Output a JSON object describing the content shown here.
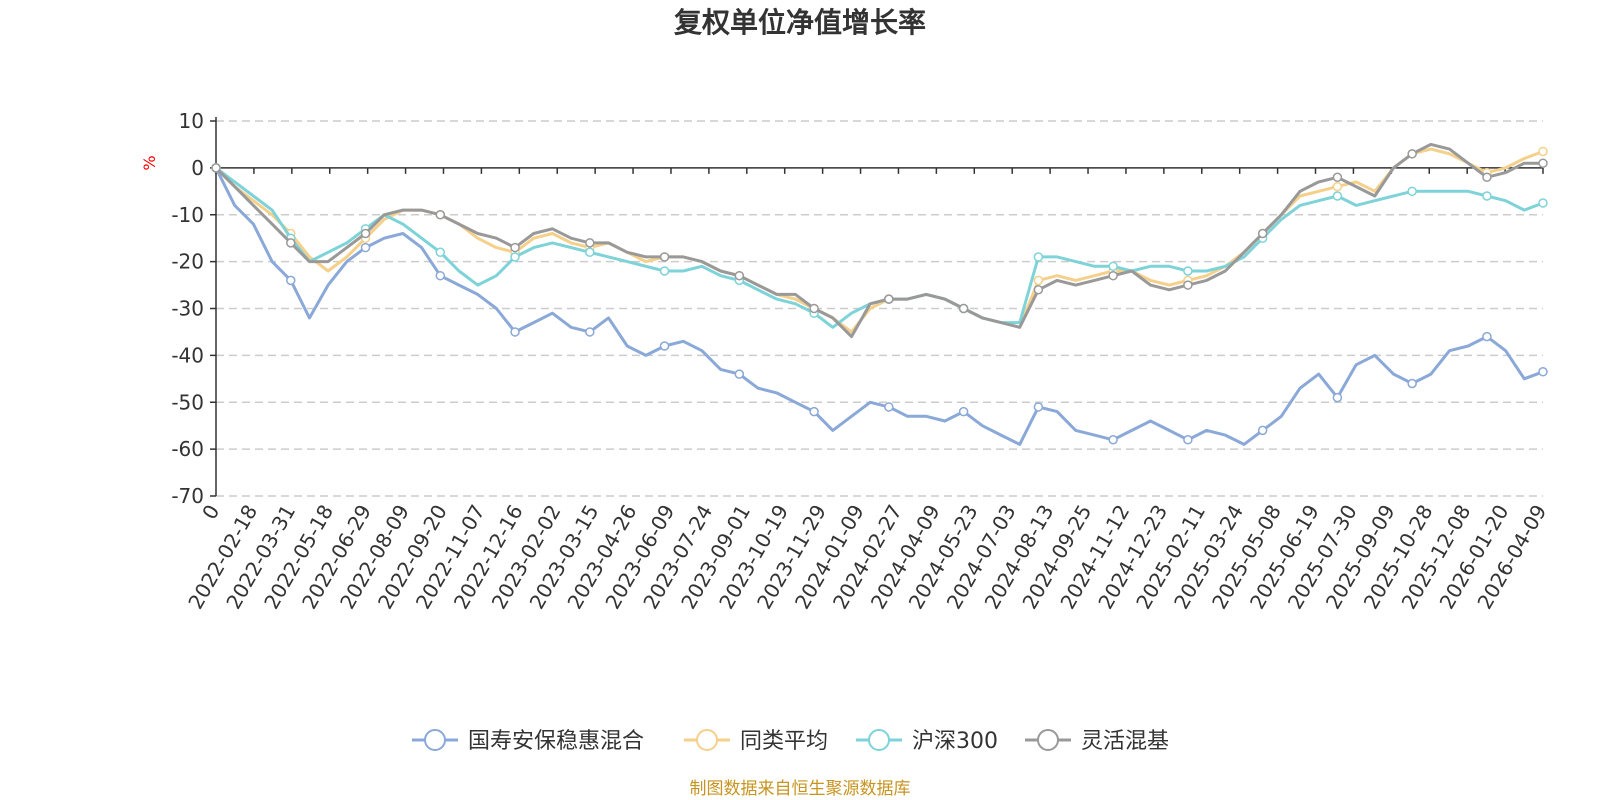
{
  "chart_data": {
    "type": "line",
    "title": "复权单位净值增长率",
    "ylabel": "%",
    "ylim": [
      -70,
      10
    ],
    "yticks": [
      10,
      0,
      -10,
      -20,
      -30,
      -40,
      -50,
      -60,
      -70
    ],
    "grid": true,
    "legend_position": "bottom-center",
    "x_tick_labels": [
      "0",
      "2022-02-18",
      "2022-03-31",
      "2022-05-18",
      "2022-06-29",
      "2022-08-09",
      "2022-09-20",
      "2022-11-07",
      "2022-12-16",
      "2023-02-02",
      "2023-03-15",
      "2023-04-26",
      "2023-06-09",
      "2023-07-24",
      "2023-09-01",
      "2023-10-19",
      "2023-11-29",
      "2024-01-09",
      "2024-02-27",
      "2024-04-09",
      "2024-05-23",
      "2024-07-03",
      "2024-08-13",
      "2024-09-25",
      "2024-11-12",
      "2024-12-23",
      "2025-02-11",
      "2025-03-24",
      "2025-05-08",
      "2025-06-19",
      "2025-07-30",
      "2025-09-09",
      "2025-10-28",
      "2025-12-08",
      "2026-01-20",
      "2026-04-09"
    ],
    "series": [
      {
        "name": "国寿安保稳惠混合",
        "color": "#8aa8d8",
        "values": [
          0,
          -8,
          -12,
          -20,
          -24,
          -32,
          -25,
          -20,
          -17,
          -15,
          -14,
          -17,
          -23,
          -25,
          -27,
          -30,
          -35,
          -33,
          -31,
          -34,
          -35,
          -32,
          -38,
          -40,
          -38,
          -37,
          -39,
          -43,
          -44,
          -47,
          -48,
          -50,
          -52,
          -56,
          -53,
          -50,
          -51,
          -53,
          -53,
          -54,
          -52,
          -55,
          -57,
          -59,
          -51,
          -52,
          -56,
          -57,
          -58,
          -56,
          -54,
          -56,
          -58,
          -56,
          -57,
          -59,
          -56,
          -53,
          -47,
          -44,
          -49,
          -42,
          -40,
          -44,
          -46,
          -44,
          -39,
          -38,
          -36,
          -39,
          -45,
          -43.5
        ]
      },
      {
        "name": "同类平均",
        "color": "#f5d08a",
        "values": [
          0,
          -4,
          -7,
          -10,
          -14,
          -19,
          -22,
          -19,
          -15,
          -11,
          -9,
          -9,
          -10,
          -12,
          -15,
          -17,
          -18,
          -15,
          -14,
          -16,
          -17,
          -16,
          -18,
          -20,
          -19,
          -19,
          -20,
          -22,
          -23,
          -25,
          -27,
          -28,
          -30,
          -32,
          -35,
          -30,
          -28,
          -28,
          -27,
          -28,
          -30,
          -32,
          -33,
          -34,
          -24,
          -23,
          -24,
          -23,
          -22,
          -22,
          -24,
          -25,
          -24,
          -23,
          -21,
          -18,
          -14,
          -10,
          -6,
          -5,
          -4,
          -3,
          -5,
          0,
          3,
          4,
          3,
          1,
          -1,
          0,
          2,
          3.5
        ]
      },
      {
        "name": "沪深300",
        "color": "#7dd3d8",
        "values": [
          0,
          -3,
          -6,
          -9,
          -15,
          -20,
          -18,
          -16,
          -13,
          -10,
          -12,
          -15,
          -18,
          -22,
          -25,
          -23,
          -19,
          -17,
          -16,
          -17,
          -18,
          -19,
          -20,
          -21,
          -22,
          -22,
          -21,
          -23,
          -24,
          -26,
          -28,
          -29,
          -31,
          -34,
          -31,
          -29,
          -28,
          -28,
          -27,
          -28,
          -30,
          -32,
          -33,
          -33,
          -19,
          -19,
          -20,
          -21,
          -21,
          -22,
          -21,
          -21,
          -22,
          -22,
          -21,
          -19,
          -15,
          -11,
          -8,
          -7,
          -6,
          -8,
          -7,
          -6,
          -5,
          -5,
          -5,
          -5,
          -6,
          -7,
          -9,
          -7.5
        ]
      },
      {
        "name": "灵活混基",
        "color": "#999999",
        "values": [
          0,
          -4,
          -8,
          -12,
          -16,
          -20,
          -20,
          -17,
          -14,
          -10,
          -9,
          -9,
          -10,
          -12,
          -14,
          -15,
          -17,
          -14,
          -13,
          -15,
          -16,
          -16,
          -18,
          -19,
          -19,
          -19,
          -20,
          -22,
          -23,
          -25,
          -27,
          -27,
          -30,
          -32,
          -36,
          -29,
          -28,
          -28,
          -27,
          -28,
          -30,
          -32,
          -33,
          -34,
          -26,
          -24,
          -25,
          -24,
          -23,
          -22,
          -25,
          -26,
          -25,
          -24,
          -22,
          -18,
          -14,
          -10,
          -5,
          -3,
          -2,
          -4,
          -6,
          0,
          3,
          5,
          4,
          1,
          -2,
          -1,
          1,
          1
        ]
      }
    ]
  },
  "legend": {
    "items": [
      "国寿安保稳惠混合",
      "同类平均",
      "沪深300",
      "灵活混基"
    ]
  },
  "footer": {
    "source": "制图数据来自恒生聚源数据库"
  }
}
